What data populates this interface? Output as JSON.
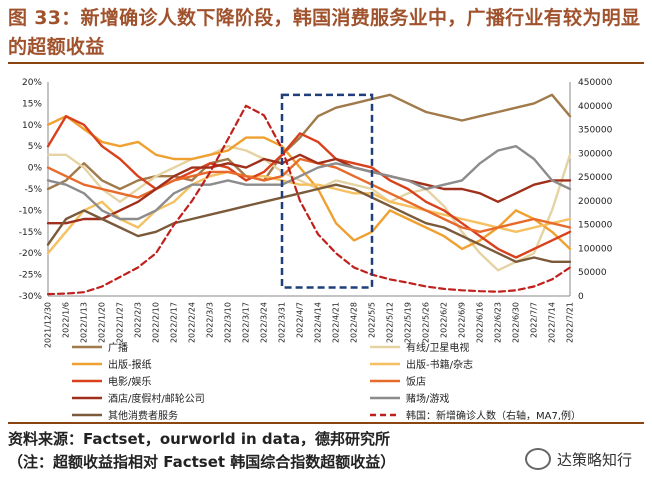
{
  "header": {
    "title": "图 33：新增确诊人数下降阶段，韩国消费服务业中，广播行业有较为明显的超额收益"
  },
  "footer": {
    "source": "资料来源：Factset，ourworld in data，德邦研究所",
    "note": "（注：超额收益指相对 Factset 韩国综合指数超额收益）",
    "watermark": "达策略知行"
  },
  "chart_data": {
    "type": "line",
    "title": "",
    "x": [
      "2021/12/30",
      "2022/1/6",
      "2022/1/13",
      "2022/1/20",
      "2022/1/27",
      "2022/2/3",
      "2022/2/10",
      "2022/2/17",
      "2022/2/24",
      "2022/3/3",
      "2022/3/10",
      "2022/3/17",
      "2022/3/24",
      "2022/3/31",
      "2022/4/7",
      "2022/4/14",
      "2022/4/21",
      "2022/4/28",
      "2022/5/5",
      "2022/5/12",
      "2022/5/19",
      "2022/5/26",
      "2022/6/2",
      "2022/6/9",
      "2022/6/16",
      "2022/6/23",
      "2022/6/30",
      "2022/7/7",
      "2022/7/14",
      "2022/7/21"
    ],
    "y_left": {
      "ylim": [
        -30,
        20
      ],
      "ticks": [
        "20%",
        "15%",
        "10%",
        "5%",
        "0%",
        "-5%",
        "-10%",
        "-15%",
        "-20%",
        "-25%",
        "-30%"
      ]
    },
    "y_right": {
      "ylim": [
        0,
        450000
      ],
      "ticks": [
        "450000",
        "400000",
        "350000",
        "300000",
        "250000",
        "200000",
        "150000",
        "100000",
        "50000",
        "0"
      ]
    },
    "highlight_box": {
      "x_start": "2022/3/31",
      "x_end": "2022/5/5",
      "y_top": 17,
      "y_bottom": -28
    },
    "series": [
      {
        "name": "广播",
        "axis": "left",
        "color": "#a07a4a",
        "style": "solid",
        "values": [
          -5,
          -3,
          1,
          -3,
          -5,
          -3,
          -2,
          -2,
          -3,
          1,
          2,
          -2,
          -3,
          3,
          7,
          12,
          14,
          15,
          16,
          17,
          15,
          13,
          12,
          11,
          12,
          13,
          14,
          15,
          17,
          12
        ]
      },
      {
        "name": "有线/卫星电视",
        "axis": "left",
        "color": "#e6d3a3",
        "style": "solid",
        "values": [
          3,
          3,
          0,
          -5,
          -8,
          -5,
          -2,
          0,
          2,
          3,
          5,
          4,
          2,
          -1,
          -3,
          -5,
          -3,
          -4,
          -5,
          -8,
          -6,
          -5,
          -9,
          -15,
          -20,
          -24,
          -22,
          -20,
          -10,
          3
        ]
      },
      {
        "name": "出版-报纸",
        "axis": "left",
        "color": "#f0a030",
        "style": "solid",
        "values": [
          10,
          12,
          9,
          6,
          5,
          6,
          3,
          2,
          2,
          3,
          4,
          7,
          7,
          5,
          0,
          -5,
          -13,
          -17,
          -15,
          -10,
          -12,
          -14,
          -16,
          -19,
          -17,
          -14,
          -10,
          -12,
          -15,
          -19
        ]
      },
      {
        "name": "出版-书籍/杂志",
        "axis": "left",
        "color": "#f5c060",
        "style": "solid",
        "values": [
          -20,
          -15,
          -10,
          -8,
          -12,
          -14,
          -10,
          -8,
          -4,
          -2,
          -1,
          -2,
          -2,
          -3,
          -4,
          -4,
          -5,
          -6,
          -6,
          -8,
          -9,
          -10,
          -11,
          -12,
          -13,
          -14,
          -15,
          -14,
          -13,
          -12
        ]
      },
      {
        "name": "电影/娱乐",
        "axis": "left",
        "color": "#d9401c",
        "style": "solid",
        "values": [
          5,
          12,
          10,
          5,
          2,
          -2,
          -5,
          -3,
          -1,
          1,
          0,
          -3,
          -1,
          3,
          8,
          6,
          2,
          1,
          0,
          -3,
          -5,
          -8,
          -10,
          -13,
          -16,
          -19,
          -21,
          -19,
          -17,
          -15
        ]
      },
      {
        "name": "饭店",
        "axis": "left",
        "color": "#e86a2a",
        "style": "solid",
        "values": [
          0,
          -2,
          -4,
          -5,
          -6,
          -7,
          -5,
          -3,
          -2,
          -1,
          -1,
          -2,
          -3,
          -2,
          2,
          1,
          0,
          -2,
          -4,
          -6,
          -8,
          -10,
          -12,
          -14,
          -15,
          -14,
          -13,
          -12,
          -13,
          -14
        ]
      },
      {
        "name": "酒店/度假村/邮轮公司",
        "axis": "left",
        "color": "#a0301c",
        "style": "solid",
        "values": [
          -13,
          -13,
          -12,
          -12,
          -10,
          -8,
          -5,
          -2,
          0,
          0,
          1,
          0,
          2,
          1,
          3,
          1,
          2,
          0,
          -1,
          -2,
          -3,
          -4,
          -5,
          -5,
          -6,
          -8,
          -6,
          -4,
          -3,
          -3
        ]
      },
      {
        "name": "赌场/游戏",
        "axis": "left",
        "color": "#8c8c8c",
        "style": "solid",
        "values": [
          -3,
          -4,
          -6,
          -10,
          -12,
          -12,
          -10,
          -6,
          -4,
          -4,
          -3,
          -4,
          -4,
          -4,
          -2,
          0,
          1,
          0,
          -1,
          -2,
          -3,
          -5,
          -4,
          -3,
          1,
          4,
          5,
          2,
          -3,
          -5
        ]
      },
      {
        "name": "其他消费者服务",
        "axis": "left",
        "color": "#7a5a3a",
        "style": "solid",
        "values": [
          -18,
          -12,
          -10,
          -12,
          -14,
          -16,
          -15,
          -13,
          -12,
          -11,
          -10,
          -9,
          -8,
          -7,
          -6,
          -5,
          -4,
          -5,
          -7,
          -9,
          -11,
          -13,
          -14,
          -16,
          -18,
          -20,
          -22,
          -21,
          -22,
          -22
        ]
      },
      {
        "name": "韩国：新增确诊人数（右轴，MA7,例）",
        "axis": "right",
        "color": "#c0201c",
        "style": "dashed",
        "values": [
          4000,
          5000,
          8000,
          20000,
          40000,
          60000,
          90000,
          150000,
          200000,
          260000,
          330000,
          400000,
          380000,
          310000,
          200000,
          130000,
          90000,
          60000,
          45000,
          35000,
          28000,
          20000,
          15000,
          12000,
          10000,
          9000,
          12000,
          20000,
          35000,
          60000
        ]
      }
    ]
  }
}
